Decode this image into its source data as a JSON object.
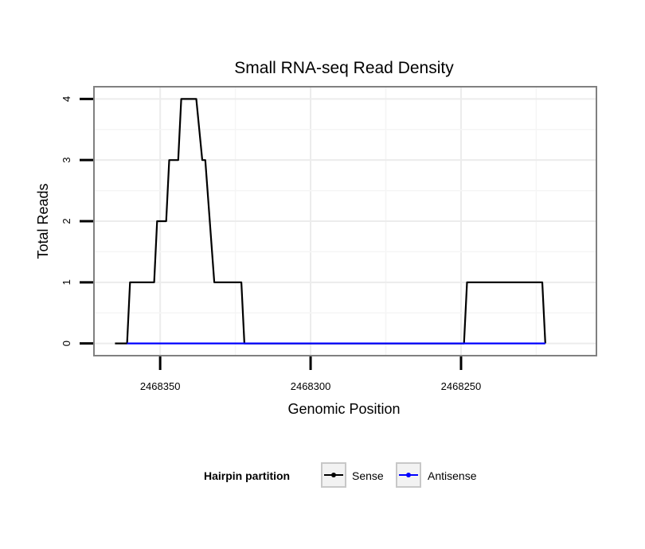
{
  "chart_data": {
    "type": "line",
    "title": "Small RNA-seq Read Density",
    "xlabel": "Genomic Position",
    "ylabel": "Total Reads",
    "x_reversed": true,
    "xlim": [
      2468372,
      2468205
    ],
    "ylim": [
      -0.2,
      4.2
    ],
    "x_ticks": [
      2468350,
      2468300,
      2468250
    ],
    "x_tick_labels": [
      "2468350",
      "2468300",
      "2468250"
    ],
    "y_ticks": [
      0,
      1,
      2,
      3,
      4
    ],
    "y_tick_labels": [
      "0",
      "1",
      "2",
      "3",
      "4"
    ],
    "grid": true,
    "legend": {
      "title": "Hairpin partition",
      "position": "bottom",
      "entries": [
        "Sense",
        "Antisense"
      ]
    },
    "series": [
      {
        "name": "Sense",
        "color": "#000000",
        "x": [
          2468365,
          2468361,
          2468360,
          2468352,
          2468351,
          2468348,
          2468347,
          2468344,
          2468343,
          2468338,
          2468336,
          2468335,
          2468332,
          2468323,
          2468322,
          2468249,
          2468248,
          2468223,
          2468222
        ],
        "y": [
          0,
          0,
          1,
          1,
          2,
          2,
          3,
          3,
          4,
          4,
          3,
          3,
          1,
          1,
          0,
          0,
          1,
          1,
          0
        ]
      },
      {
        "name": "Antisense",
        "color": "#0000ff",
        "x": [
          2468361,
          2468222
        ],
        "y": [
          0,
          0
        ]
      }
    ]
  }
}
